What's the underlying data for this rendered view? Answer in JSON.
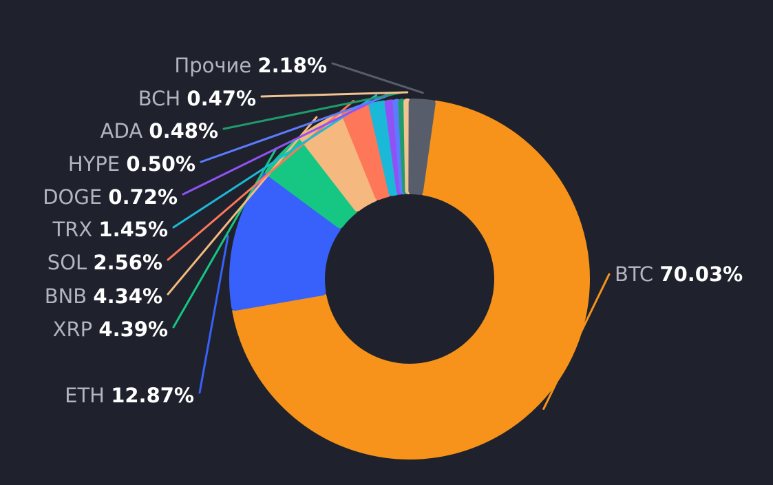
{
  "chart_data": {
    "type": "pie",
    "variant": "donut",
    "title": "",
    "legend": "none",
    "slices": [
      {
        "name": "BTC",
        "value": 70.03,
        "label": "70.03%",
        "color": "#f7931a"
      },
      {
        "name": "ETH",
        "value": 12.87,
        "label": "12.87%",
        "color": "#3861fb"
      },
      {
        "name": "XRP",
        "value": 4.39,
        "label": "4.39%",
        "color": "#16c784"
      },
      {
        "name": "BNB",
        "value": 4.34,
        "label": "4.34%",
        "color": "#f5b97f"
      },
      {
        "name": "SOL",
        "value": 2.56,
        "label": "2.56%",
        "color": "#ff7759"
      },
      {
        "name": "TRX",
        "value": 1.45,
        "label": "1.45%",
        "color": "#1cb8d8"
      },
      {
        "name": "DOGE",
        "value": 0.72,
        "label": "0.72%",
        "color": "#9152f5"
      },
      {
        "name": "HYPE",
        "value": 0.5,
        "label": "0.50%",
        "color": "#5b7cff"
      },
      {
        "name": "ADA",
        "value": 0.48,
        "label": "0.48%",
        "color": "#1e9c6b"
      },
      {
        "name": "BCH",
        "value": 0.47,
        "label": "0.47%",
        "color": "#f2c491"
      },
      {
        "name": "Прочие",
        "value": 2.18,
        "label": "2.18%",
        "color": "#585d6c"
      }
    ]
  }
}
